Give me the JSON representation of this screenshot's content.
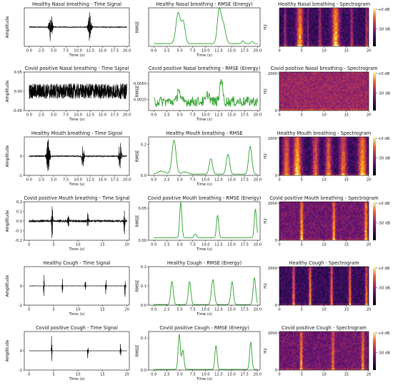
{
  "colors": {
    "time_signal": "#000000",
    "rmse": "#2ca02c",
    "axis": "#000000",
    "spec_dark": "#0d0829",
    "spec_mid": "#b5367a",
    "spec_bright": "#fcc261"
  },
  "colorbar_labels": [
    "+0 dB",
    "-50 dB"
  ],
  "chart_data": [
    {
      "type": "line",
      "title": "Healthy Nasal breathing - Time Signal",
      "xlabel": "Time (s)",
      "ylabel": "Amplitude",
      "xlim": [
        -1,
        20.5
      ],
      "ylim": [
        -1,
        1
      ],
      "xticks": [
        "0.0",
        "2.5",
        "5.0",
        "7.5",
        "10.0",
        "12.5",
        "15.0",
        "17.5",
        "20.0"
      ],
      "yticks": [],
      "series": [
        {
          "style": "waveform",
          "noise": 0.02,
          "bursts": [
            {
              "t": 4.4,
              "w": 0.35,
              "a": 0.85
            },
            {
              "t": 12.4,
              "w": 0.35,
              "a": 0.8
            }
          ]
        }
      ]
    },
    {
      "type": "line",
      "title": "Healthy Nasal breathing - RMSE (Energy)",
      "xlabel": "Time (s)",
      "ylabel": "RMSE",
      "xlim": [
        -1,
        20.5
      ],
      "ylim": [
        0,
        1
      ],
      "xticks": [
        "0.0",
        "2.5",
        "5.0",
        "7.5",
        "10.0",
        "12.5",
        "15.0",
        "17.5",
        "20.0"
      ],
      "yticks": [],
      "series": [
        {
          "style": "rmse",
          "base": 0.07,
          "peaks": [
            {
              "t": 4.7,
              "w": 0.6,
              "h": 0.8
            },
            {
              "t": 5.7,
              "w": 0.5,
              "h": 0.55
            },
            {
              "t": 12.6,
              "w": 0.5,
              "h": 0.85
            },
            {
              "t": 13.4,
              "w": 0.6,
              "h": 0.5
            },
            {
              "t": 17.2,
              "w": 0.3,
              "h": 0.08
            },
            {
              "t": 19.0,
              "w": 0.3,
              "h": 0.06
            }
          ]
        }
      ]
    },
    {
      "type": "heatmap",
      "title": "Healthy Nasal breathing - Spectrogram",
      "xlabel": "",
      "ylabel": "Hz",
      "xlim": [
        0,
        20
      ],
      "ylim": [
        0,
        2000
      ],
      "xticks": [
        "0",
        "5",
        "10",
        "15",
        "20"
      ],
      "yticks": [],
      "stripes": [
        {
          "t": 1.3,
          "w": 0.25,
          "i": 0.5
        },
        {
          "t": 4.6,
          "w": 0.7,
          "i": 0.95
        },
        {
          "t": 6.4,
          "w": 0.2,
          "i": 0.4
        },
        {
          "t": 9.1,
          "w": 0.3,
          "i": 0.5
        },
        {
          "t": 12.6,
          "w": 0.8,
          "i": 1.0
        },
        {
          "t": 16.2,
          "w": 0.3,
          "i": 0.5
        },
        {
          "t": 19.6,
          "w": 0.3,
          "i": 0.55
        }
      ]
    },
    {
      "type": "line",
      "title": "Covid positive Nasal breathing - Time Signal",
      "xlabel": "Time (s)",
      "ylabel": "Amplitude",
      "xlim": [
        -1,
        20.5
      ],
      "ylim": [
        -0.05,
        0.05
      ],
      "xticks": [
        "0.0",
        "2.5",
        "5.0",
        "7.5",
        "10.0",
        "12.5",
        "15.0",
        "17.5",
        "20.0"
      ],
      "yticks": [
        "0.05",
        "0.00",
        "-0.05"
      ],
      "series": [
        {
          "style": "waveform",
          "noise": 0.02,
          "bursts": [
            {
              "t": 13.0,
              "w": 0.08,
              "a": 0.045
            },
            {
              "t": 4.8,
              "w": 0.4,
              "a": 0.015
            }
          ]
        }
      ]
    },
    {
      "type": "line",
      "title": "Covid positive Nasal breathing - RMSE (Energy)",
      "xlabel": "Time (s)",
      "ylabel": "RMSE",
      "xlim": [
        -1,
        20.5
      ],
      "ylim": [
        0.0008,
        0.0068
      ],
      "xticks": [
        "0.0",
        "2.5",
        "5.0",
        "7.5",
        "10.0",
        "12.5",
        "15.0",
        "17.5",
        "20.0"
      ],
      "yticks": [
        "0.0050",
        "0.0025"
      ],
      "series": [
        {
          "style": "rmse",
          "base": 0.0022,
          "jitter": 0.0008,
          "peaks": [
            {
              "t": 4.8,
              "w": 0.3,
              "h": 0.0022
            },
            {
              "t": 13.0,
              "w": 0.35,
              "h": 0.0038
            },
            {
              "t": 10.5,
              "w": 0.4,
              "h": 0.0012
            }
          ]
        }
      ]
    },
    {
      "type": "heatmap",
      "title": "Covid positive Nasal breathing - Spectrogram",
      "xlabel": "",
      "ylabel": "Hz",
      "xlim": [
        0,
        20
      ],
      "ylim": [
        0,
        2000
      ],
      "xticks": [
        "0",
        "5",
        "10",
        "15",
        "20"
      ],
      "yticks": [
        "2000",
        "0"
      ],
      "stripes": []
    },
    {
      "type": "line",
      "title": "Healthy Mouth breathing - Time Signal",
      "xlabel": "Time (s)",
      "ylabel": "Amplitude",
      "xlim": [
        -1,
        20.5
      ],
      "ylim": [
        -1,
        1
      ],
      "xticks": [
        "0.0",
        "2.5",
        "5.0",
        "7.5",
        "10.0",
        "12.5",
        "15.0",
        "17.5",
        "20.0"
      ],
      "yticks": [
        "0",
        "-1"
      ],
      "series": [
        {
          "style": "waveform",
          "noise": 0.03,
          "bursts": [
            {
              "t": 3.9,
              "w": 0.35,
              "a": 0.95
            },
            {
              "t": 11.0,
              "w": 0.25,
              "a": 0.7
            },
            {
              "t": 18.6,
              "w": 0.3,
              "a": 0.85
            }
          ]
        }
      ]
    },
    {
      "type": "line",
      "title": "Healthy Mouth breathing - RMSE",
      "xlabel": "Time (s)",
      "ylabel": "RMSE",
      "xlim": [
        -1,
        20.5
      ],
      "ylim": [
        0,
        0.25
      ],
      "xticks": [
        "0.0",
        "2.5",
        "5.0",
        "7.5",
        "10.0",
        "12.5",
        "15.0",
        "17.5",
        "20.0"
      ],
      "yticks": [
        "0.2",
        "0.0"
      ],
      "series": [
        {
          "style": "rmse",
          "base": 0.008,
          "peaks": [
            {
              "t": 3.9,
              "w": 0.55,
              "h": 0.22
            },
            {
              "t": 11.0,
              "w": 0.45,
              "h": 0.1
            },
            {
              "t": 14.3,
              "w": 0.45,
              "h": 0.13
            },
            {
              "t": 18.6,
              "w": 0.45,
              "h": 0.18
            },
            {
              "t": 1.5,
              "w": 1.0,
              "h": 0.02
            },
            {
              "t": 6.0,
              "w": 0.8,
              "h": 0.015
            }
          ]
        }
      ]
    },
    {
      "type": "heatmap",
      "title": "Healthy Mouth breathing - Spectrogram",
      "xlabel": "",
      "ylabel": "Hz",
      "xlim": [
        0,
        20
      ],
      "ylim": [
        0,
        2000
      ],
      "xticks": [
        "0",
        "5",
        "10",
        "15",
        "20"
      ],
      "yticks": [
        "2000",
        "0"
      ],
      "stripes": [
        {
          "t": 1.6,
          "w": 0.8,
          "i": 0.75
        },
        {
          "t": 4.0,
          "w": 0.9,
          "i": 1.0
        },
        {
          "t": 8.1,
          "w": 0.7,
          "i": 0.7
        },
        {
          "t": 11.0,
          "w": 0.7,
          "i": 0.75
        },
        {
          "t": 14.3,
          "w": 0.8,
          "i": 0.75
        },
        {
          "t": 18.6,
          "w": 0.9,
          "i": 0.95
        }
      ]
    },
    {
      "type": "line",
      "title": "Covid positive Mouth breathing - Time Signal",
      "xlabel": "Time (s)",
      "ylabel": "Amplitude",
      "xlim": [
        -1,
        20.5
      ],
      "ylim": [
        -0.2,
        0.2
      ],
      "xticks": [
        "0",
        "5",
        "10",
        "15",
        "20"
      ],
      "yticks": [
        "0.2",
        "0.1",
        "0.0",
        "-0.1",
        "-0.2"
      ],
      "series": [
        {
          "style": "waveform",
          "noise": 0.012,
          "bursts": [
            {
              "t": 4.7,
              "w": 0.15,
              "a": 0.19
            },
            {
              "t": 8.0,
              "w": 0.15,
              "a": 0.09
            },
            {
              "t": 12.0,
              "w": 0.15,
              "a": 0.12
            },
            {
              "t": 19.5,
              "w": 0.15,
              "a": 0.14
            }
          ]
        }
      ]
    },
    {
      "type": "line",
      "title": "Covid positive Mouth breathing - RMSE (Energy)",
      "xlabel": "Time (s)",
      "ylabel": "RMSE",
      "xlim": [
        -1,
        20.5
      ],
      "ylim": [
        0,
        0.06
      ],
      "xticks": [
        "0.0",
        "2.5",
        "5.0",
        "7.5",
        "10.0",
        "12.5",
        "15.0",
        "17.5",
        "20.0"
      ],
      "yticks": [
        "0.05",
        "0.00"
      ],
      "series": [
        {
          "style": "rmse",
          "base": 0.004,
          "peaks": [
            {
              "t": 5.2,
              "w": 0.3,
              "h": 0.055
            },
            {
              "t": 12.3,
              "w": 0.3,
              "h": 0.035
            },
            {
              "t": 19.6,
              "w": 0.3,
              "h": 0.045
            },
            {
              "t": 8.0,
              "w": 0.3,
              "h": 0.006
            }
          ]
        }
      ]
    },
    {
      "type": "heatmap",
      "title": "Covid positive Mouth breathing - Spectrogram",
      "xlabel": "",
      "ylabel": "Hz",
      "xlim": [
        0,
        20
      ],
      "ylim": [
        0,
        2000
      ],
      "xticks": [
        "0",
        "5",
        "10",
        "15",
        "20"
      ],
      "yticks": [
        "2000",
        "0"
      ],
      "stripes": [
        {
          "t": 5.0,
          "w": 0.35,
          "i": 0.75
        },
        {
          "t": 12.2,
          "w": 0.35,
          "i": 0.7
        },
        {
          "t": 19.4,
          "w": 0.35,
          "i": 0.75
        }
      ]
    },
    {
      "type": "line",
      "title": "Healthy Cough - Time Signal",
      "xlabel": "Time (s)",
      "ylabel": "Amplitude",
      "xlim": [
        -1,
        20.5
      ],
      "ylim": [
        -1,
        1
      ],
      "xticks": [
        "0",
        "5",
        "10",
        "15",
        "20"
      ],
      "yticks": [
        "0",
        "-1"
      ],
      "series": [
        {
          "style": "waveform",
          "noise": 0.005,
          "bursts": [
            {
              "t": 3.0,
              "w": 0.08,
              "a": 0.6
            },
            {
              "t": 6.8,
              "w": 0.08,
              "a": 0.55
            },
            {
              "t": 11.5,
              "w": 0.08,
              "a": 0.55
            },
            {
              "t": 15.7,
              "w": 0.08,
              "a": 0.55
            },
            {
              "t": 19.6,
              "w": 0.08,
              "a": 0.6
            }
          ]
        }
      ]
    },
    {
      "type": "line",
      "title": "Healthy Cough - RMSE (Energy)",
      "xlabel": "Time (s)",
      "ylabel": "RMSE",
      "xlim": [
        -1,
        20.5
      ],
      "ylim": [
        0,
        0.2
      ],
      "xticks": [
        "0.0",
        "2.5",
        "5.0",
        "7.5",
        "10.0",
        "12.5",
        "15.0",
        "17.5",
        "20.0"
      ],
      "yticks": [
        "0.2",
        "0.1",
        "0.0"
      ],
      "series": [
        {
          "style": "rmse",
          "base": 0.003,
          "peaks": [
            {
              "t": 3.5,
              "w": 0.35,
              "h": 0.12
            },
            {
              "t": 6.9,
              "w": 0.35,
              "h": 0.12
            },
            {
              "t": 11.4,
              "w": 0.4,
              "h": 0.13
            },
            {
              "t": 15.1,
              "w": 0.35,
              "h": 0.12
            },
            {
              "t": 19.4,
              "w": 0.35,
              "h": 0.14
            }
          ]
        }
      ]
    },
    {
      "type": "heatmap",
      "title": "Healthy Cough - Spectrogram",
      "xlabel": "",
      "ylabel": "Hz",
      "xlim": [
        0,
        20
      ],
      "ylim": [
        0,
        2000
      ],
      "xticks": [
        "0",
        "5",
        "10",
        "15",
        "20"
      ],
      "yticks": [
        "2000",
        "0"
      ],
      "stripes": [
        {
          "t": 3.2,
          "w": 0.3,
          "i": 0.8
        },
        {
          "t": 6.9,
          "w": 0.3,
          "i": 0.85
        },
        {
          "t": 11.7,
          "w": 0.3,
          "i": 0.8
        },
        {
          "t": 15.8,
          "w": 0.3,
          "i": 0.8
        },
        {
          "t": 19.5,
          "w": 0.3,
          "i": 0.85
        }
      ]
    },
    {
      "type": "line",
      "title": "Covid positive Cough - Time Signal",
      "xlabel": "Time (s)",
      "ylabel": "Amplitude",
      "xlim": [
        -1,
        20.5
      ],
      "ylim": [
        -1,
        1
      ],
      "xticks": [
        "0",
        "5",
        "10",
        "15",
        "20"
      ],
      "yticks": [
        "0",
        "-1"
      ],
      "series": [
        {
          "style": "waveform",
          "noise": 0.003,
          "bursts": [
            {
              "t": 4.6,
              "w": 0.08,
              "a": 0.85
            },
            {
              "t": 12.0,
              "w": 0.08,
              "a": 0.7
            },
            {
              "t": 18.7,
              "w": 0.08,
              "a": 0.6
            }
          ]
        }
      ]
    },
    {
      "type": "line",
      "title": "Covid positive Cough - RMSE (Energy)",
      "xlabel": "Time (s)",
      "ylabel": "RMSE",
      "xlim": [
        -1,
        20.5
      ],
      "ylim": [
        0,
        0.12
      ],
      "xticks": [
        "0.0",
        "2.5",
        "5.0",
        "7.5",
        "10.0",
        "12.5",
        "15.0",
        "17.5",
        "20.0"
      ],
      "yticks": [
        "0.1",
        "0.0"
      ],
      "series": [
        {
          "style": "rmse",
          "base": 0.002,
          "peaks": [
            {
              "t": 4.9,
              "w": 0.3,
              "h": 0.11
            },
            {
              "t": 5.6,
              "w": 0.3,
              "h": 0.06
            },
            {
              "t": 12.0,
              "w": 0.3,
              "h": 0.075
            },
            {
              "t": 18.7,
              "w": 0.3,
              "h": 0.085
            }
          ]
        }
      ]
    },
    {
      "type": "heatmap",
      "title": "Covid positive Cough - Spectrogram",
      "xlabel": "",
      "ylabel": "Hz",
      "xlim": [
        0,
        20
      ],
      "ylim": [
        0,
        2000
      ],
      "xticks": [
        "0",
        "5",
        "10",
        "15",
        "20"
      ],
      "yticks": [
        "2000",
        "0"
      ],
      "stripes": [
        {
          "t": 4.9,
          "w": 0.3,
          "i": 0.7
        },
        {
          "t": 12.0,
          "w": 0.3,
          "i": 0.6
        },
        {
          "t": 18.7,
          "w": 0.3,
          "i": 0.65
        }
      ]
    }
  ]
}
